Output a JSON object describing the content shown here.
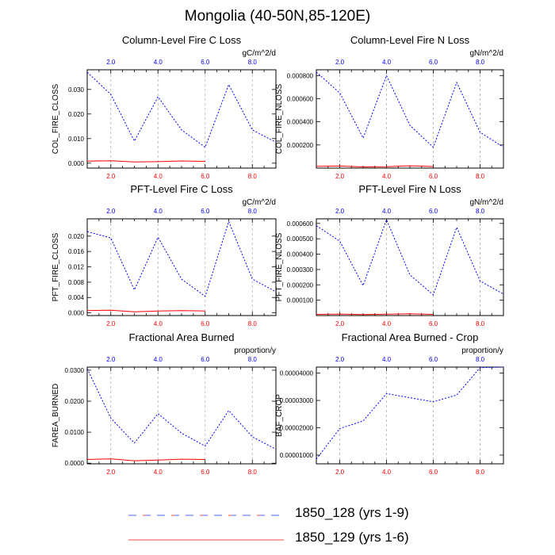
{
  "page": {
    "title": "Mongolia (40-50N,85-120E)"
  },
  "legend": {
    "entries": [
      {
        "label": "1850_128 (yrs 1-9)",
        "style": "dashed",
        "color": "#0000ff"
      },
      {
        "label": "1850_129 (yrs 1-6)",
        "style": "solid",
        "color": "#ff0000"
      }
    ]
  },
  "chart_data": [
    {
      "type": "line",
      "title": "Column-Level Fire C Loss",
      "units": "gC/m^2/d",
      "ylabel": "COL_FIRE_CLOSS",
      "xlim": [
        1,
        9
      ],
      "ylim": [
        -0.002,
        0.038
      ],
      "bottom_xticks": [
        "2.0",
        "4.0",
        "6.0",
        "8.0"
      ],
      "top_xticks": [
        "2.0",
        "4.0",
        "6.0",
        "8.0"
      ],
      "yticks": [
        "0.000",
        "0.010",
        "0.020",
        "0.030"
      ],
      "ytick_values": [
        0,
        0.01,
        0.02,
        0.03
      ],
      "series": [
        {
          "name": "1850_128 (yrs 1-9)",
          "color": "#0000ff",
          "style": "dashed",
          "x": [
            1,
            2,
            3,
            4,
            5,
            6,
            7,
            8,
            9
          ],
          "y": [
            0.037,
            0.028,
            0.009,
            0.027,
            0.0135,
            0.0065,
            0.032,
            0.0135,
            0.0085
          ]
        },
        {
          "name": "1850_129 (yrs 1-6)",
          "color": "#ff0000",
          "style": "solid",
          "x": [
            1,
            2,
            3,
            4,
            5,
            6
          ],
          "y": [
            0.0008,
            0.001,
            0.0005,
            0.0006,
            0.0009,
            0.0007
          ]
        }
      ]
    },
    {
      "type": "line",
      "title": "Column-Level Fire N Loss",
      "units": "gN/m^2/d",
      "ylabel": "COL_FIRE_NLOSS",
      "xlim": [
        1,
        9
      ],
      "ylim": [
        0,
        0.00085
      ],
      "bottom_xticks": [
        "2.0",
        "4.0",
        "6.0",
        "8.0"
      ],
      "top_xticks": [
        "2.0",
        "4.0",
        "6.0",
        "8.0"
      ],
      "yticks": [
        "0.000200",
        "0.000400",
        "0.000600",
        "0.000800"
      ],
      "ytick_values": [
        0.0002,
        0.0004,
        0.0006,
        0.0008
      ],
      "series": [
        {
          "name": "1850_128 (yrs 1-9)",
          "color": "#0000ff",
          "style": "dashed",
          "x": [
            1,
            2,
            3,
            4,
            5,
            6,
            7,
            8,
            9
          ],
          "y": [
            0.00083,
            0.00065,
            0.00026,
            0.0008,
            0.00037,
            0.00018,
            0.00074,
            0.00031,
            0.00018
          ]
        },
        {
          "name": "1850_129 (yrs 1-6)",
          "color": "#ff0000",
          "style": "solid",
          "x": [
            1,
            2,
            3,
            4,
            5,
            6
          ],
          "y": [
            1.5e-05,
            1.8e-05,
            1e-05,
            1.2e-05,
            2e-05,
            1.4e-05
          ]
        }
      ]
    },
    {
      "type": "line",
      "title": "PFT-Level Fire C Loss",
      "units": "gC/m^2/d",
      "ylabel": "PFT_FIRE_CLOSS",
      "xlim": [
        1,
        9
      ],
      "ylim": [
        -0.0007,
        0.0245
      ],
      "bottom_xticks": [
        "2.0",
        "4.0",
        "6.0",
        "8.0"
      ],
      "top_xticks": [
        "2.0",
        "4.0",
        "6.0",
        "8.0"
      ],
      "yticks": [
        "0.000",
        "0.004",
        "0.008",
        "0.012",
        "0.016",
        "0.020"
      ],
      "ytick_values": [
        0,
        0.004,
        0.008,
        0.012,
        0.016,
        0.02
      ],
      "series": [
        {
          "name": "1850_128 (yrs 1-9)",
          "color": "#0000ff",
          "style": "dashed",
          "x": [
            1,
            2,
            3,
            4,
            5,
            6,
            7,
            8,
            9
          ],
          "y": [
            0.0212,
            0.0195,
            0.006,
            0.0197,
            0.0088,
            0.0043,
            0.0238,
            0.0088,
            0.0055
          ]
        },
        {
          "name": "1850_129 (yrs 1-6)",
          "color": "#ff0000",
          "style": "solid",
          "x": [
            1,
            2,
            3,
            4,
            5,
            6
          ],
          "y": [
            0.0006,
            0.0007,
            0.0003,
            0.0005,
            0.0006,
            0.0005
          ]
        }
      ]
    },
    {
      "type": "line",
      "title": "PFT-Level Fire N Loss",
      "units": "gN/m^2/d",
      "ylabel": "PFT_FIRE_NLOSS",
      "xlim": [
        1,
        9
      ],
      "ylim": [
        0,
        0.00063
      ],
      "bottom_xticks": [
        "2.0",
        "4.0",
        "6.0",
        "8.0"
      ],
      "top_xticks": [
        "2.0",
        "4.0",
        "6.0",
        "8.0"
      ],
      "yticks": [
        "0.000100",
        "0.000200",
        "0.000300",
        "0.000400",
        "0.000500",
        "0.000600"
      ],
      "ytick_values": [
        0.0001,
        0.0002,
        0.0003,
        0.0004,
        0.0005,
        0.0006
      ],
      "series": [
        {
          "name": "1850_128 (yrs 1-9)",
          "color": "#0000ff",
          "style": "dashed",
          "x": [
            1,
            2,
            3,
            4,
            5,
            6,
            7,
            8,
            9
          ],
          "y": [
            0.000585,
            0.000485,
            0.000195,
            0.000625,
            0.000265,
            0.000135,
            0.000575,
            0.000225,
            0.00014
          ]
        },
        {
          "name": "1850_129 (yrs 1-6)",
          "color": "#ff0000",
          "style": "solid",
          "x": [
            1,
            2,
            3,
            4,
            5,
            6
          ],
          "y": [
            8e-06,
            1e-05,
            6e-06,
            9e-06,
            1.2e-05,
            8e-06
          ]
        }
      ]
    },
    {
      "type": "line",
      "title": "Fractional Area Burned",
      "units": "proportion/y",
      "ylabel": "FAREA_BURNED",
      "xlim": [
        1,
        9
      ],
      "ylim": [
        -0.0002,
        0.031
      ],
      "bottom_xticks": [
        "2.0",
        "4.0",
        "6.0",
        "8.0"
      ],
      "top_xticks": [
        "2.0",
        "4.0",
        "6.0",
        "8.0"
      ],
      "yticks": [
        "0.0000",
        "0.0100",
        "0.0200",
        "0.0300"
      ],
      "ytick_values": [
        0,
        0.01,
        0.02,
        0.03
      ],
      "series": [
        {
          "name": "1850_128 (yrs 1-9)",
          "color": "#0000ff",
          "style": "dashed",
          "x": [
            1,
            2,
            3,
            4,
            5,
            6,
            7,
            8,
            9
          ],
          "y": [
            0.0305,
            0.0145,
            0.0065,
            0.016,
            0.0097,
            0.0055,
            0.017,
            0.0085,
            0.0045
          ]
        },
        {
          "name": "1850_129 (yrs 1-6)",
          "color": "#ff0000",
          "style": "solid",
          "x": [
            1,
            2,
            3,
            4,
            5,
            6
          ],
          "y": [
            0.0012,
            0.0014,
            0.0008,
            0.001,
            0.0013,
            0.0012
          ]
        }
      ]
    },
    {
      "type": "line",
      "title": "Fractional Area Burned - Crop",
      "units": "proportion/y",
      "ylabel": "BAF_CROP",
      "xlim": [
        1,
        9
      ],
      "ylim": [
        6.8e-06,
        4.22e-05
      ],
      "bottom_xticks": [
        "2.0",
        "4.0",
        "6.0",
        "8.0"
      ],
      "top_xticks": [
        "2.0",
        "4.0",
        "6.0",
        "8.0"
      ],
      "yticks": [
        "0.00001000",
        "0.00002000",
        "0.00003000",
        "0.00004000"
      ],
      "ytick_values": [
        1e-05,
        2e-05,
        3e-05,
        4e-05
      ],
      "series": [
        {
          "name": "1850_128 (yrs 1-9)",
          "color": "#0000ff",
          "style": "dashed",
          "x": [
            1,
            2,
            3,
            4,
            5,
            6,
            7,
            8,
            9
          ],
          "y": [
            8.5e-06,
            1.97e-05,
            2.25e-05,
            3.25e-05,
            3.1e-05,
            2.95e-05,
            3.2e-05,
            4.2e-05,
            4.22e-05
          ]
        }
      ]
    }
  ]
}
